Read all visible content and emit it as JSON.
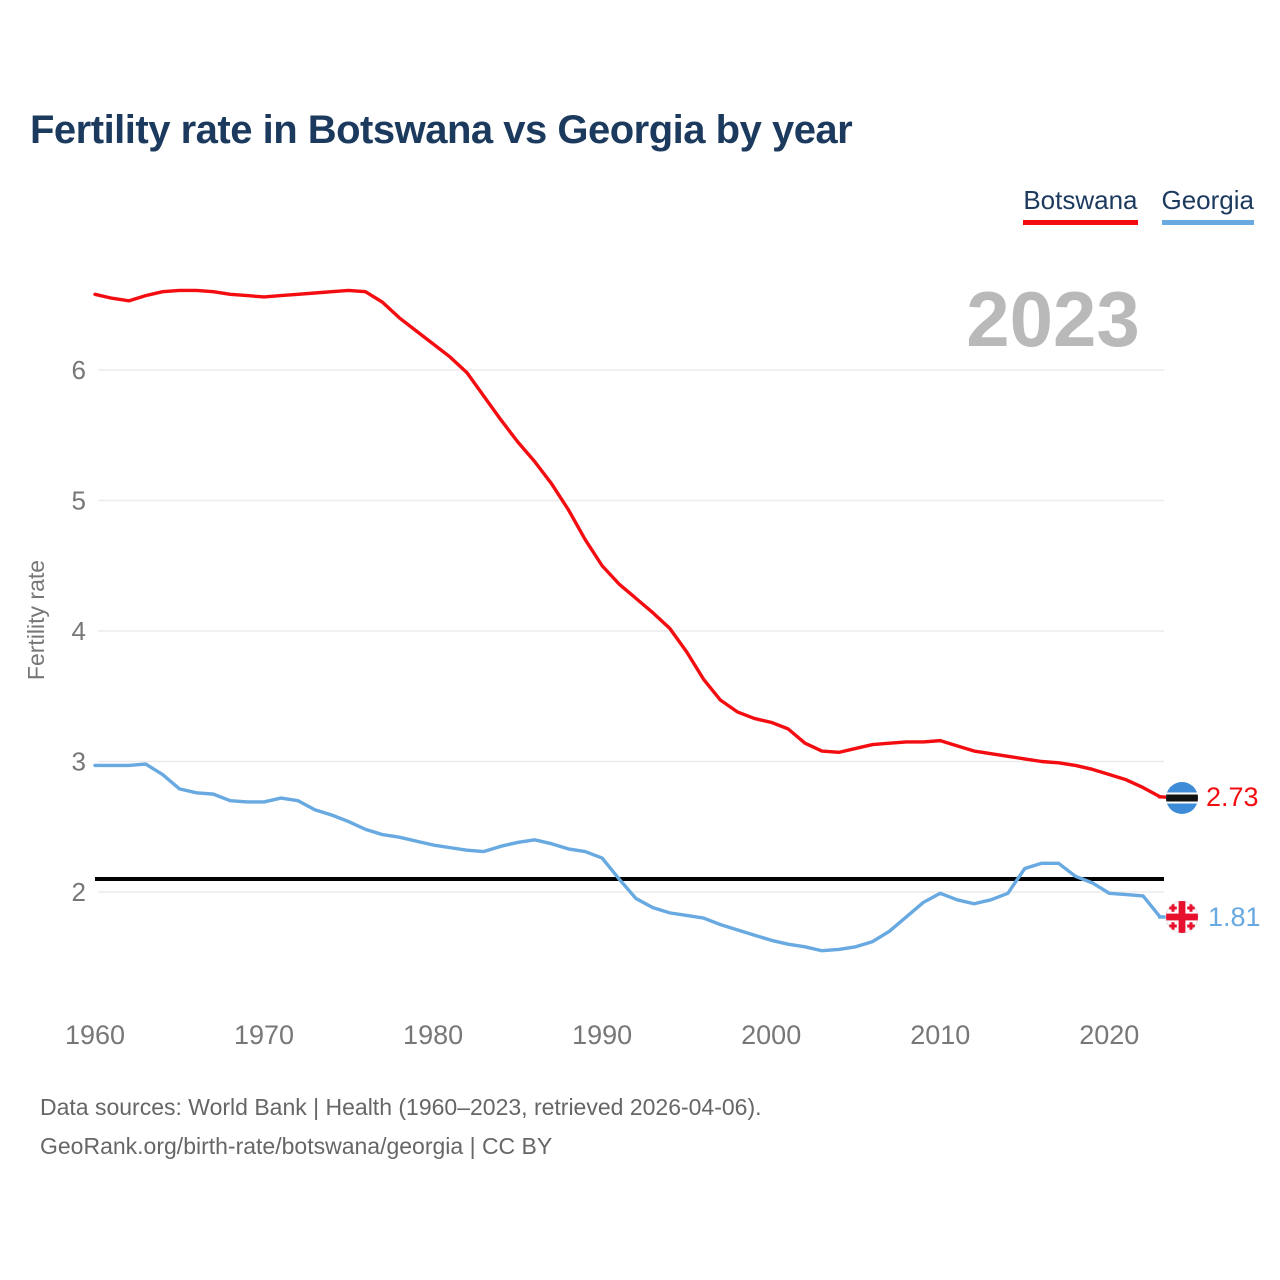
{
  "title": "Fertility rate in Botswana vs Georgia by year",
  "watermark": "2023",
  "legend": [
    {
      "label": "Botswana",
      "color": "#f30d11"
    },
    {
      "label": "Georgia",
      "color": "#67a9e0"
    }
  ],
  "y_axis": {
    "label": "Fertility rate",
    "ticks": [
      6,
      5,
      4,
      3,
      2
    ]
  },
  "x_axis": {
    "ticks": [
      1960,
      1970,
      1980,
      1990,
      2000,
      2010,
      2020
    ]
  },
  "reference_line": {
    "value": 2.1,
    "color": "#000000"
  },
  "end_labels": {
    "botswana": "2.73",
    "georgia": "1.81"
  },
  "footer": {
    "line1": "Data sources: World Bank | Health (1960–2023, retrieved 2026-04-06).",
    "line2": "GeoRank.org/birth-rate/botswana/georgia | CC BY"
  },
  "chart_data": {
    "type": "line",
    "title": "Fertility rate in Botswana vs Georgia by year",
    "xlabel": "",
    "ylabel": "Fertility rate",
    "ylim": [
      1.3,
      7.0
    ],
    "xlim": [
      1960,
      2023
    ],
    "grid": "horizontal",
    "legend_position": "top-right",
    "x": [
      1960,
      1961,
      1962,
      1963,
      1964,
      1965,
      1966,
      1967,
      1968,
      1969,
      1970,
      1971,
      1972,
      1973,
      1974,
      1975,
      1976,
      1977,
      1978,
      1979,
      1980,
      1981,
      1982,
      1983,
      1984,
      1985,
      1986,
      1987,
      1988,
      1989,
      1990,
      1991,
      1992,
      1993,
      1994,
      1995,
      1996,
      1997,
      1998,
      1999,
      2000,
      2001,
      2002,
      2003,
      2004,
      2005,
      2006,
      2007,
      2008,
      2009,
      2010,
      2011,
      2012,
      2013,
      2014,
      2015,
      2016,
      2017,
      2018,
      2019,
      2020,
      2021,
      2022,
      2023
    ],
    "series": [
      {
        "name": "Botswana",
        "color": "#f30d11",
        "final_value": 2.73,
        "values": [
          6.58,
          6.55,
          6.53,
          6.57,
          6.6,
          6.61,
          6.61,
          6.6,
          6.58,
          6.57,
          6.56,
          6.57,
          6.58,
          6.59,
          6.6,
          6.61,
          6.6,
          6.52,
          6.4,
          6.3,
          6.2,
          6.1,
          5.98,
          5.8,
          5.62,
          5.45,
          5.3,
          5.13,
          4.93,
          4.7,
          4.5,
          4.36,
          4.25,
          4.14,
          4.02,
          3.84,
          3.63,
          3.47,
          3.38,
          3.33,
          3.3,
          3.25,
          3.14,
          3.08,
          3.07,
          3.1,
          3.13,
          3.14,
          3.15,
          3.15,
          3.16,
          3.12,
          3.08,
          3.06,
          3.04,
          3.02,
          3.0,
          2.99,
          2.97,
          2.94,
          2.9,
          2.86,
          2.8,
          2.73
        ]
      },
      {
        "name": "Georgia",
        "color": "#67a9e0",
        "final_value": 1.81,
        "values": [
          2.97,
          2.97,
          2.97,
          2.98,
          2.9,
          2.79,
          2.76,
          2.75,
          2.7,
          2.69,
          2.69,
          2.72,
          2.7,
          2.63,
          2.59,
          2.54,
          2.48,
          2.44,
          2.42,
          2.39,
          2.36,
          2.34,
          2.32,
          2.31,
          2.35,
          2.38,
          2.4,
          2.37,
          2.33,
          2.31,
          2.26,
          2.1,
          1.95,
          1.88,
          1.84,
          1.82,
          1.8,
          1.75,
          1.71,
          1.67,
          1.63,
          1.6,
          1.58,
          1.55,
          1.56,
          1.58,
          1.62,
          1.7,
          1.81,
          1.92,
          1.99,
          1.94,
          1.91,
          1.94,
          1.99,
          2.18,
          2.22,
          2.22,
          2.12,
          2.07,
          1.99,
          1.98,
          1.97,
          1.81
        ]
      }
    ],
    "annotations": {
      "reference_line_value": 2.1,
      "watermark_year": "2023"
    }
  }
}
